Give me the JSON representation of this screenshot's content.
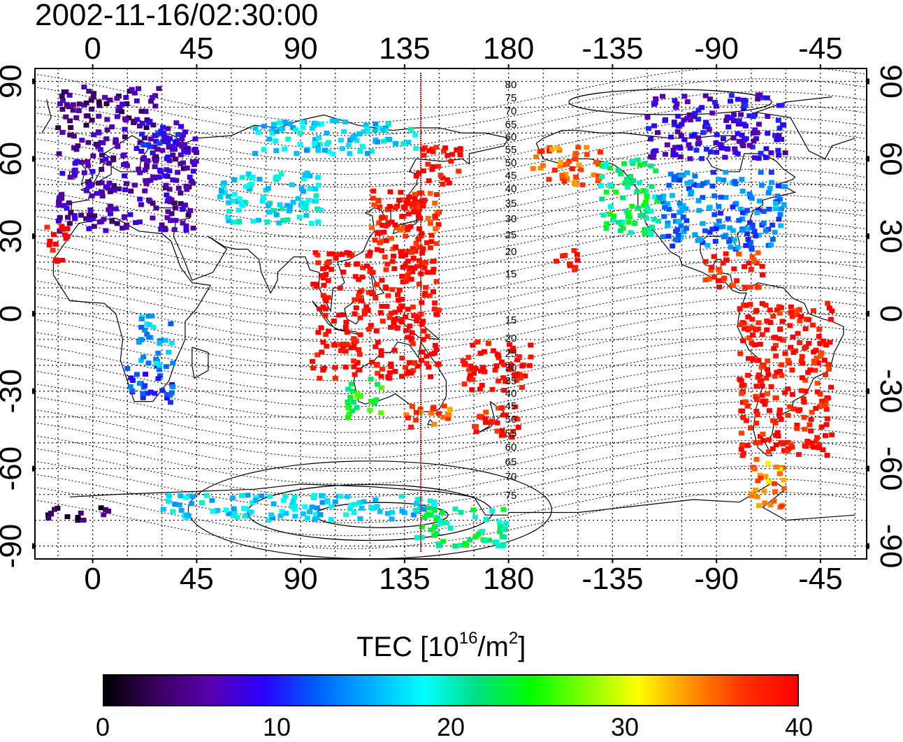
{
  "title": "2002-11-16/02:30:00",
  "map": {
    "top_lon_labels": [
      "0",
      "45",
      "90",
      "135",
      "180",
      "-135",
      "-90",
      "-45"
    ],
    "bottom_lon_labels": [
      "0",
      "45",
      "90",
      "135",
      "180",
      "-135",
      "-90",
      "-45"
    ],
    "lat_labels": [
      "90",
      "60",
      "30",
      "0",
      "-30",
      "-60",
      "-90"
    ],
    "meridian_lon": 142,
    "meridian_color": "#e00000",
    "mlat_labels_north": [
      "80",
      "75",
      "70",
      "65",
      "60",
      "55",
      "50",
      "45",
      "40",
      "35",
      "30",
      "25",
      "20",
      "15"
    ],
    "mlat_labels_south": [
      "15",
      "20",
      "25",
      "30",
      "35",
      "40",
      "45",
      "50",
      "55",
      "60",
      "65",
      "70",
      "75"
    ]
  },
  "colorbar": {
    "title_prefix": "TEC  [10",
    "title_exp": "16",
    "title_mid": "/m",
    "title_exp2": "2",
    "title_suffix": "]",
    "ticks": [
      "0",
      "10",
      "20",
      "30",
      "40"
    ],
    "range": [
      0,
      40
    ],
    "colors": [
      "#000000",
      "#3a0060",
      "#5a00b0",
      "#2a00ff",
      "#0060ff",
      "#00b0ff",
      "#00ffff",
      "#00e080",
      "#00ff00",
      "#80ff00",
      "#ffff00",
      "#ff9000",
      "#ff3000",
      "#ff0000"
    ]
  },
  "tec_regions": [
    {
      "name": "europe",
      "lon": [
        -15,
        45
      ],
      "lat": [
        32,
        72
      ],
      "tec": 6
    },
    {
      "name": "north-europe-fringe",
      "lon": [
        -15,
        30
      ],
      "lat": [
        72,
        88
      ],
      "tec": 5
    },
    {
      "name": "scandinavia",
      "lon": [
        20,
        40
      ],
      "lat": [
        60,
        75
      ],
      "tec": 9
    },
    {
      "name": "central-asia",
      "lon": [
        55,
        100
      ],
      "lat": [
        35,
        55
      ],
      "tec": 18
    },
    {
      "name": "siberia-north",
      "lon": [
        70,
        140
      ],
      "lat": [
        62,
        75
      ],
      "tec": 17
    },
    {
      "name": "japan",
      "lon": [
        120,
        150
      ],
      "lat": [
        25,
        48
      ],
      "tec": 38
    },
    {
      "name": "east-asia",
      "lon": [
        125,
        145
      ],
      "lat": [
        30,
        45
      ],
      "tec": 40
    },
    {
      "name": "se-asia",
      "lon": [
        95,
        150
      ],
      "lat": [
        -25,
        25
      ],
      "tec": 40
    },
    {
      "name": "kamchatka",
      "lon": [
        140,
        160
      ],
      "lat": [
        50,
        65
      ],
      "tec": 40
    },
    {
      "name": "alaska",
      "lon": [
        -170,
        -140
      ],
      "lat": [
        50,
        65
      ],
      "tec": 36
    },
    {
      "name": "north-america-west",
      "lon": [
        -140,
        -115
      ],
      "lat": [
        30,
        60
      ],
      "tec": 22
    },
    {
      "name": "north-america",
      "lon": [
        -115,
        -60
      ],
      "lat": [
        25,
        55
      ],
      "tec": 13
    },
    {
      "name": "canada-north",
      "lon": [
        -120,
        -60
      ],
      "lat": [
        60,
        85
      ],
      "tec": 8
    },
    {
      "name": "central-america",
      "lon": [
        -95,
        -70
      ],
      "lat": [
        10,
        25
      ],
      "tec": 38
    },
    {
      "name": "south-america",
      "lon": [
        -80,
        -40
      ],
      "lat": [
        -55,
        5
      ],
      "tec": 39
    },
    {
      "name": "patagonia",
      "lon": [
        -75,
        -60
      ],
      "lat": [
        -75,
        -55
      ],
      "tec": 34
    },
    {
      "name": "pacific-south",
      "lon": [
        160,
        -170
      ],
      "lat": [
        -30,
        -10
      ],
      "tec": 40
    },
    {
      "name": "new-zealand",
      "lon": [
        165,
        185
      ],
      "lat": [
        -48,
        -35
      ],
      "tec": 39
    },
    {
      "name": "australia-se",
      "lon": [
        135,
        155
      ],
      "lat": [
        -45,
        -35
      ],
      "tec": 36
    },
    {
      "name": "australia-w",
      "lon": [
        110,
        125
      ],
      "lat": [
        -40,
        -25
      ],
      "tec": 24
    },
    {
      "name": "south-africa",
      "lon": [
        15,
        35
      ],
      "lat": [
        -35,
        -20
      ],
      "tec": 11
    },
    {
      "name": "africa-east",
      "lon": [
        20,
        35
      ],
      "lat": [
        -20,
        0
      ],
      "tec": 15
    },
    {
      "name": "antarctica",
      "lon": [
        30,
        150
      ],
      "lat": [
        -80,
        -70
      ],
      "tec": 17
    },
    {
      "name": "antarctica-w",
      "lon": [
        -20,
        10
      ],
      "lat": [
        -80,
        -75
      ],
      "tec": 3
    },
    {
      "name": "antarctica-east",
      "lon": [
        140,
        180
      ],
      "lat": [
        -90,
        -75
      ],
      "tec": 22
    },
    {
      "name": "hawaii",
      "lon": [
        -160,
        -150
      ],
      "lat": [
        15,
        25
      ],
      "tec": 40
    },
    {
      "name": "atlantic-coast",
      "lon": [
        -20,
        -10
      ],
      "lat": [
        20,
        35
      ],
      "tec": 40
    }
  ]
}
